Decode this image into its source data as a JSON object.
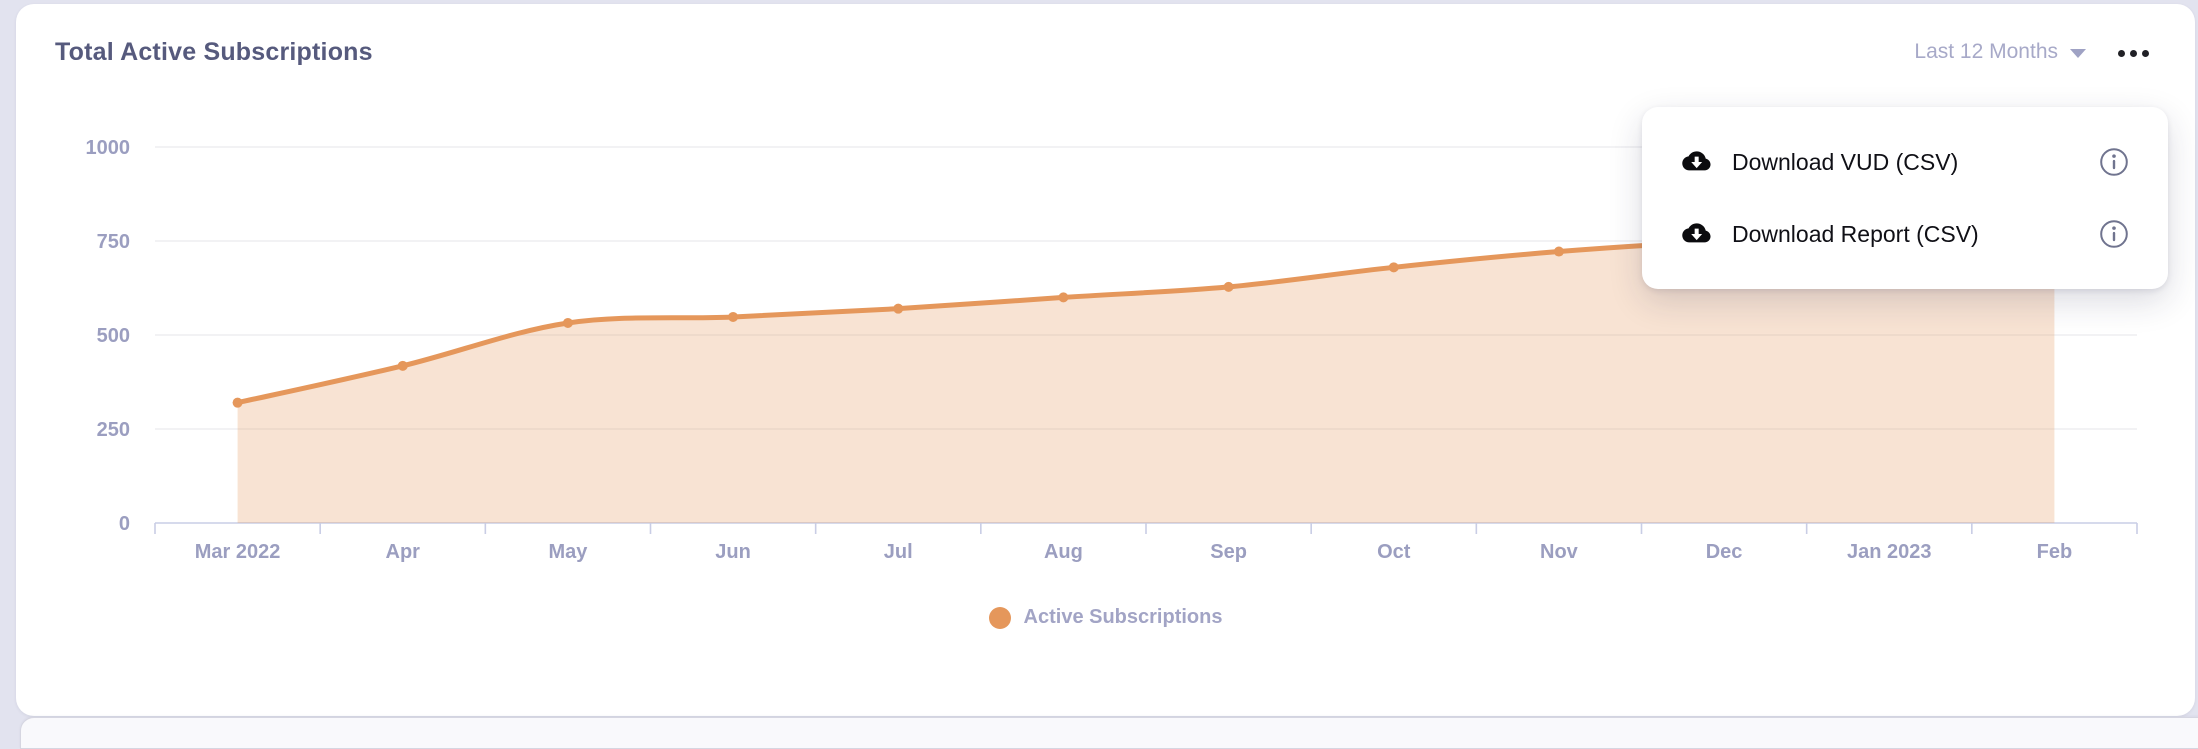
{
  "card": {
    "title": "Total Active Subscriptions",
    "range_selector": {
      "label": "Last 12 Months"
    },
    "more_menu": {
      "items": [
        {
          "label": "Download VUD (CSV)",
          "icon": "cloud-download-icon",
          "trailing_icon": "info-icon"
        },
        {
          "label": "Download Report (CSV)",
          "icon": "cloud-download-icon",
          "trailing_icon": "info-icon"
        }
      ]
    },
    "legend": {
      "label": "Active Subscriptions"
    }
  },
  "chart_data": {
    "type": "area",
    "title": "Total Active Subscriptions",
    "categories": [
      "Mar 2022",
      "Apr",
      "May",
      "Jun",
      "Jul",
      "Aug",
      "Sep",
      "Oct",
      "Nov",
      "Dec",
      "Jan 2023",
      "Feb"
    ],
    "series": [
      {
        "name": "Active Subscriptions",
        "values": [
          320,
          418,
          532,
          548,
          570,
          600,
          628,
          680,
          722,
          750,
          765,
          780
        ]
      }
    ],
    "xlabel": "",
    "ylabel": "",
    "ylim": [
      0,
      1000
    ],
    "yticks": [
      0,
      250,
      500,
      750,
      1000
    ],
    "grid": true,
    "legend_position": "bottom",
    "line_color": "#E5975B",
    "fill_color": "rgba(229,151,91,0.27)",
    "grid_color": "#ebebee",
    "axis_color": "#c9cde5",
    "tick_label_color": "#9b9ec0"
  }
}
